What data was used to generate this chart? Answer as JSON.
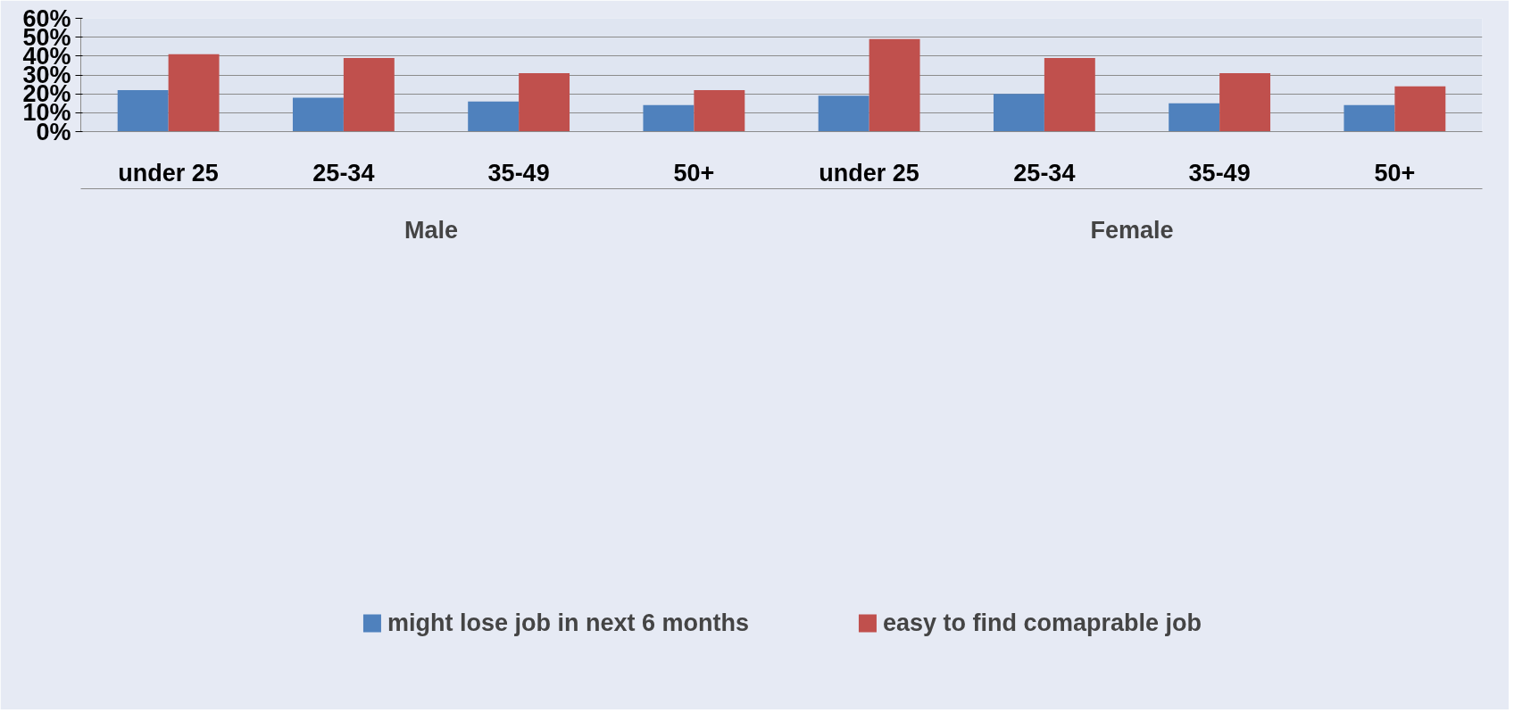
{
  "chart_data": {
    "type": "bar",
    "categories": [
      "under 25",
      "25-34",
      "35-49",
      "50+",
      "under 25",
      "25-34",
      "35-49",
      "50+"
    ],
    "series": [
      {
        "name": "might lose job in next 6 months",
        "color": "#4f81bd",
        "values": [
          22,
          18,
          16,
          14,
          19,
          20,
          15,
          14
        ]
      },
      {
        "name": "easy to find comaprable job",
        "color": "#c0504d",
        "values": [
          41,
          39,
          31,
          22,
          49,
          39,
          31,
          24
        ]
      }
    ],
    "ylim": [
      0,
      60
    ],
    "yticks": [
      {
        "value": 0,
        "label": "0%"
      },
      {
        "value": 10,
        "label": "10%"
      },
      {
        "value": 20,
        "label": "20%"
      },
      {
        "value": 30,
        "label": "30%"
      },
      {
        "value": 40,
        "label": "40%"
      },
      {
        "value": 50,
        "label": "50%"
      },
      {
        "value": 60,
        "label": "60%"
      }
    ],
    "grid": "y",
    "legend": "bottom",
    "annotations": [
      "Male",
      "Female"
    ]
  }
}
